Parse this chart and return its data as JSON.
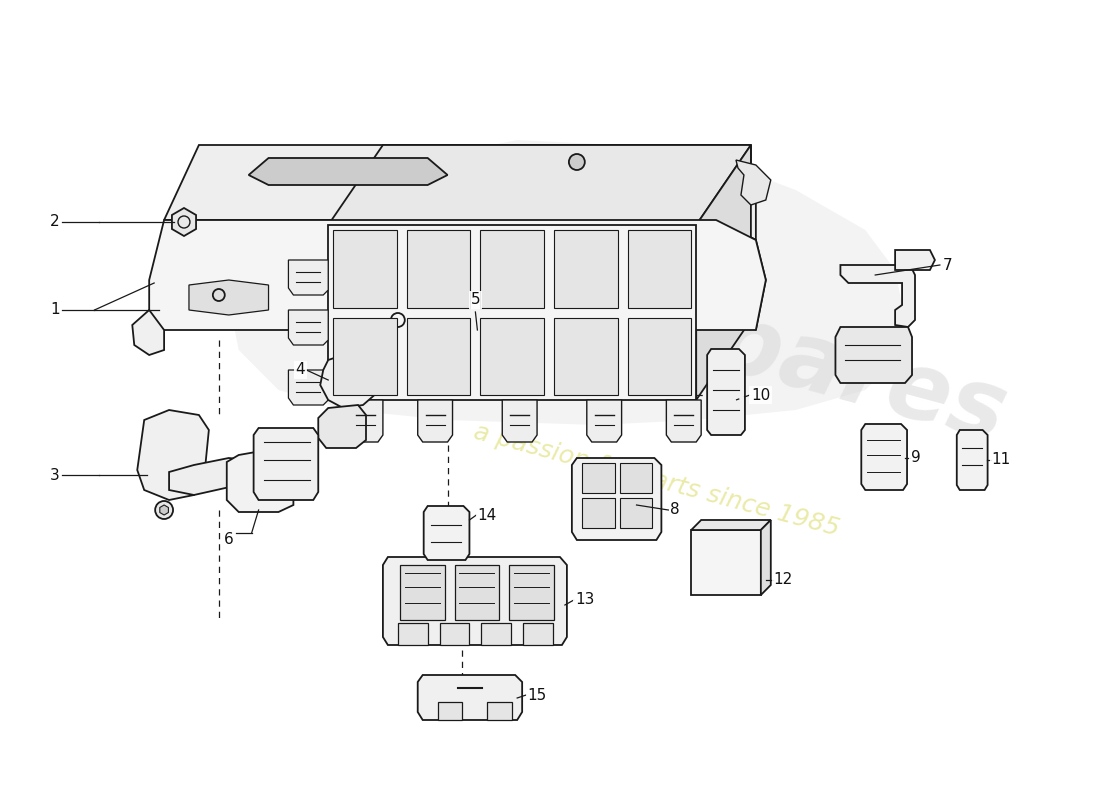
{
  "background_color": "#ffffff",
  "line_color": "#1a1a1a",
  "watermark_gray": "#d8d8d8",
  "watermark_yellow": "#e8e8a0",
  "fig_width": 11.0,
  "fig_height": 8.0,
  "dpi": 100
}
